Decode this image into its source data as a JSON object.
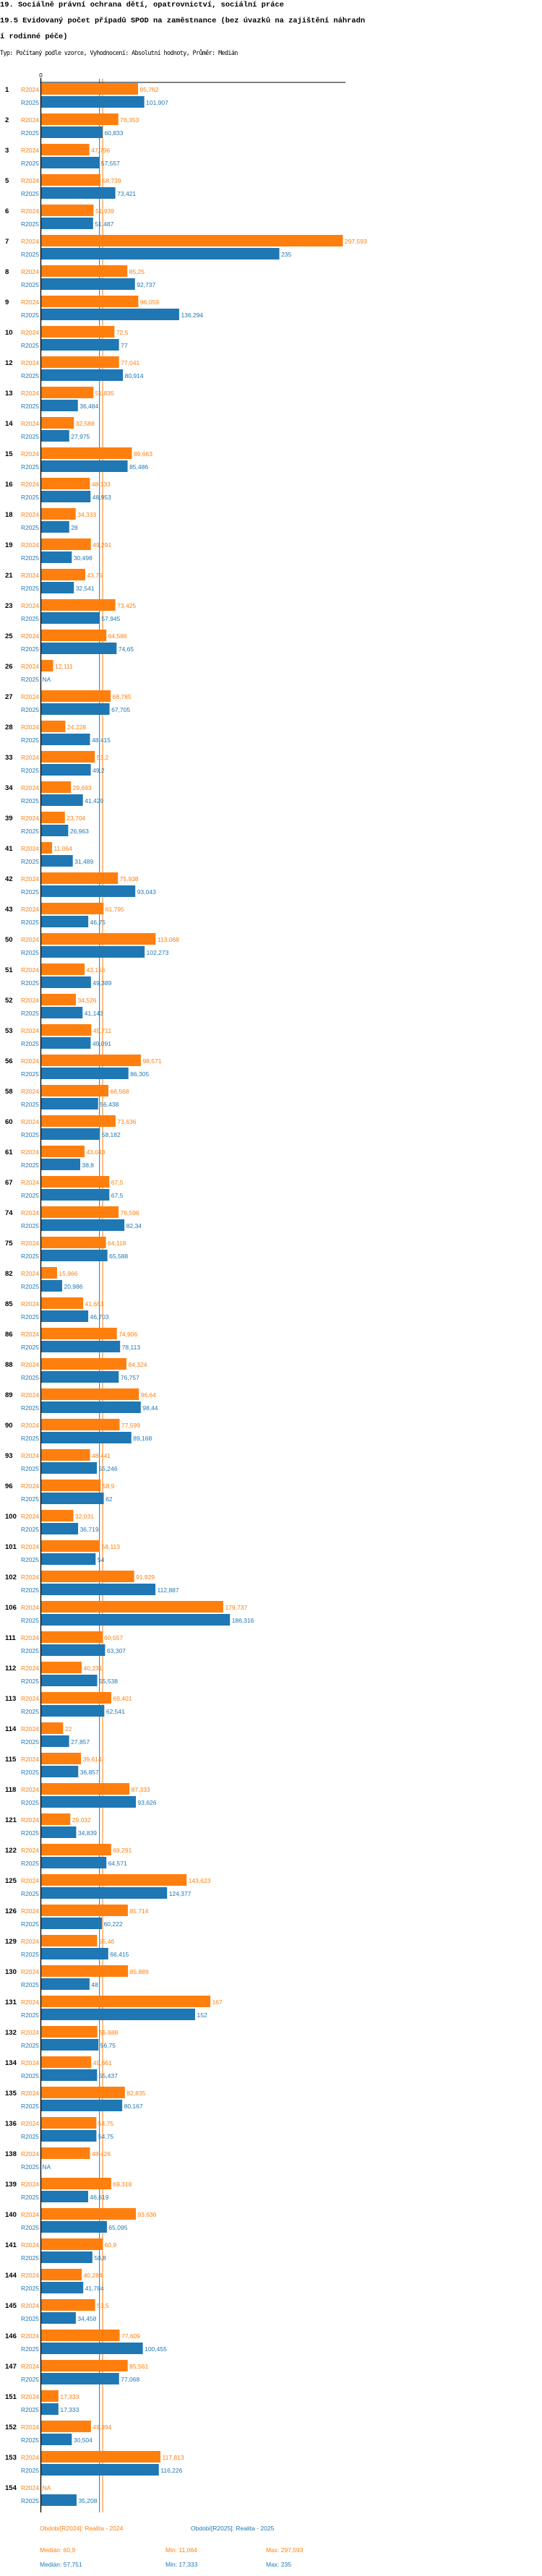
{
  "header": {
    "title": "19. Sociálně právní ochrana dětí, opatrovnictví, sociální práce",
    "subtitle_lines": [
      "19.5 Evidovaný počet případů SPOD na zaměstnance (bez úvazků na zajištění náhradn",
      "í rodinné péče)"
    ],
    "type_line": "Typ: Počítaný podle vzorce, Vyhodnocení: Absolutní hodnoty, Průměr: Medián"
  },
  "chart_data": {
    "type": "bar",
    "orientation": "horizontal",
    "axis_zero_label": "0",
    "xlim": [
      0,
      297.593
    ],
    "na_label": "NA",
    "colors": {
      "R2024": "#ff7f0e",
      "R2025": "#1f77b4"
    },
    "series_names": [
      "R2024",
      "R2025"
    ],
    "rows": [
      {
        "id": "1",
        "R2024": 95.762,
        "R2025": 101.907
      },
      {
        "id": "2",
        "R2024": 76.353,
        "R2025": 60.833
      },
      {
        "id": "3",
        "R2024": 47.796,
        "R2025": 57.557
      },
      {
        "id": "5",
        "R2024": 58.739,
        "R2025": 73.421
      },
      {
        "id": "6",
        "R2024": 51.939,
        "R2025": 51.487
      },
      {
        "id": "7",
        "R2024": 297.593,
        "R2025": 235
      },
      {
        "id": "8",
        "R2024": 85.25,
        "R2025": 92.737
      },
      {
        "id": "9",
        "R2024": 96.059,
        "R2025": 136.294
      },
      {
        "id": "10",
        "R2024": 72.5,
        "R2025": 77
      },
      {
        "id": "12",
        "R2024": 77.041,
        "R2025": 80.914
      },
      {
        "id": "13",
        "R2024": 51.835,
        "R2025": 36.484
      },
      {
        "id": "14",
        "R2024": 32.588,
        "R2025": 27.975
      },
      {
        "id": "15",
        "R2024": 89.663,
        "R2025": 85.486
      },
      {
        "id": "16",
        "R2024": 48.333,
        "R2025": 48.953
      },
      {
        "id": "18",
        "R2024": 34.333,
        "R2025": 28
      },
      {
        "id": "19",
        "R2024": 49.291,
        "R2025": 30.498
      },
      {
        "id": "21",
        "R2024": 43.75,
        "R2025": 32.541
      },
      {
        "id": "23",
        "R2024": 73.425,
        "R2025": 57.945
      },
      {
        "id": "25",
        "R2024": 64.586,
        "R2025": 74.65
      },
      {
        "id": "26",
        "R2024": 12.111,
        "R2025": null
      },
      {
        "id": "27",
        "R2024": 68.785,
        "R2025": 67.705
      },
      {
        "id": "28",
        "R2024": 24.228,
        "R2025": 48.415
      },
      {
        "id": "33",
        "R2024": 53.2,
        "R2025": 49.2
      },
      {
        "id": "34",
        "R2024": 29.693,
        "R2025": 41.429
      },
      {
        "id": "39",
        "R2024": 23.704,
        "R2025": 26.963
      },
      {
        "id": "41",
        "R2024": 11.064,
        "R2025": 31.489
      },
      {
        "id": "42",
        "R2024": 75.938,
        "R2025": 93.043
      },
      {
        "id": "43",
        "R2024": 61.795,
        "R2025": 46.75
      },
      {
        "id": "50",
        "R2024": 113.068,
        "R2025": 102.273
      },
      {
        "id": "51",
        "R2024": 43.156,
        "R2025": 49.389
      },
      {
        "id": "52",
        "R2024": 34.526,
        "R2025": 41.143
      },
      {
        "id": "53",
        "R2024": 49.711,
        "R2025": 49.091
      },
      {
        "id": "56",
        "R2024": 98.571,
        "R2025": 86.305
      },
      {
        "id": "58",
        "R2024": 66.568,
        "R2025": 56.438
      },
      {
        "id": "60",
        "R2024": 73.636,
        "R2025": 58.182
      },
      {
        "id": "61",
        "R2024": 43.043,
        "R2025": 38.8
      },
      {
        "id": "67",
        "R2024": 67.5,
        "R2025": 67.5
      },
      {
        "id": "74",
        "R2024": 76.596,
        "R2025": 82.34
      },
      {
        "id": "75",
        "R2024": 64.118,
        "R2025": 65.588
      },
      {
        "id": "82",
        "R2024": 15.966,
        "R2025": 20.986
      },
      {
        "id": "85",
        "R2024": 41.683,
        "R2025": 46.703
      },
      {
        "id": "86",
        "R2024": 74.906,
        "R2025": 78.113
      },
      {
        "id": "88",
        "R2024": 84.324,
        "R2025": 76.757
      },
      {
        "id": "89",
        "R2024": 96.64,
        "R2025": 98.44
      },
      {
        "id": "90",
        "R2024": 77.599,
        "R2025": 89.168
      },
      {
        "id": "93",
        "R2024": 48.441,
        "R2025": 55.246
      },
      {
        "id": "96",
        "R2024": 58.9,
        "R2025": 62
      },
      {
        "id": "100",
        "R2024": 32.031,
        "R2025": 36.719
      },
      {
        "id": "101",
        "R2024": 58.113,
        "R2025": 54
      },
      {
        "id": "102",
        "R2024": 91.929,
        "R2025": 112.887
      },
      {
        "id": "106",
        "R2024": 179.737,
        "R2025": 186.316
      },
      {
        "id": "111",
        "R2024": 60.557,
        "R2025": 63.307
      },
      {
        "id": "112",
        "R2024": 40.231,
        "R2025": 55.538
      },
      {
        "id": "113",
        "R2024": 69.401,
        "R2025": 62.541
      },
      {
        "id": "114",
        "R2024": 22,
        "R2025": 27.857
      },
      {
        "id": "115",
        "R2024": 39.614,
        "R2025": 36.857
      },
      {
        "id": "118",
        "R2024": 87.333,
        "R2025": 93.626
      },
      {
        "id": "121",
        "R2024": 29.032,
        "R2025": 34.839
      },
      {
        "id": "122",
        "R2024": 69.291,
        "R2025": 64.571
      },
      {
        "id": "125",
        "R2024": 143.623,
        "R2025": 124.377
      },
      {
        "id": "126",
        "R2024": 85.714,
        "R2025": 60.222
      },
      {
        "id": "129",
        "R2024": 55.46,
        "R2025": 66.415
      },
      {
        "id": "130",
        "R2024": 85.889,
        "R2025": 48
      },
      {
        "id": "131",
        "R2024": 167,
        "R2025": 152
      },
      {
        "id": "132",
        "R2024": 55.688,
        "R2025": 56.75
      },
      {
        "id": "134",
        "R2024": 49.661,
        "R2025": 55.437
      },
      {
        "id": "135",
        "R2024": 82.835,
        "R2025": 80.167
      },
      {
        "id": "136",
        "R2024": 54.75,
        "R2025": 54.75
      },
      {
        "id": "138",
        "R2024": 48.426,
        "R2025": null
      },
      {
        "id": "139",
        "R2024": 69.318,
        "R2025": 46.619
      },
      {
        "id": "140",
        "R2024": 93.636,
        "R2025": 65.095
      },
      {
        "id": "141",
        "R2024": 60.9,
        "R2025": 50.8
      },
      {
        "id": "144",
        "R2024": 40.284,
        "R2025": 41.784
      },
      {
        "id": "145",
        "R2024": 53.5,
        "R2025": 34.458
      },
      {
        "id": "146",
        "R2024": 77.609,
        "R2025": 100.455
      },
      {
        "id": "147",
        "R2024": 85.561,
        "R2025": 77.068
      },
      {
        "id": "151",
        "R2024": 17.333,
        "R2025": 17.333
      },
      {
        "id": "152",
        "R2024": 49.394,
        "R2025": 30.504
      },
      {
        "id": "153",
        "R2024": 117.813,
        "R2025": 116.226
      },
      {
        "id": "154",
        "R2024": null,
        "R2025": 35.208
      }
    ],
    "medians": {
      "R2024": 60.9,
      "R2025": 57.751
    },
    "legend": {
      "R2024": "Období[R2024]: Realita - 2024",
      "R2025": "Období[R2025]: Realita - 2025"
    },
    "stats": {
      "R2024": {
        "median": "Medián: 60,9",
        "min": "Min: 11,064",
        "max": "Max: 297,593"
      },
      "R2025": {
        "median": "Medián: 57,751",
        "min": "Min: 17,333",
        "max": "Max: 235"
      }
    }
  }
}
